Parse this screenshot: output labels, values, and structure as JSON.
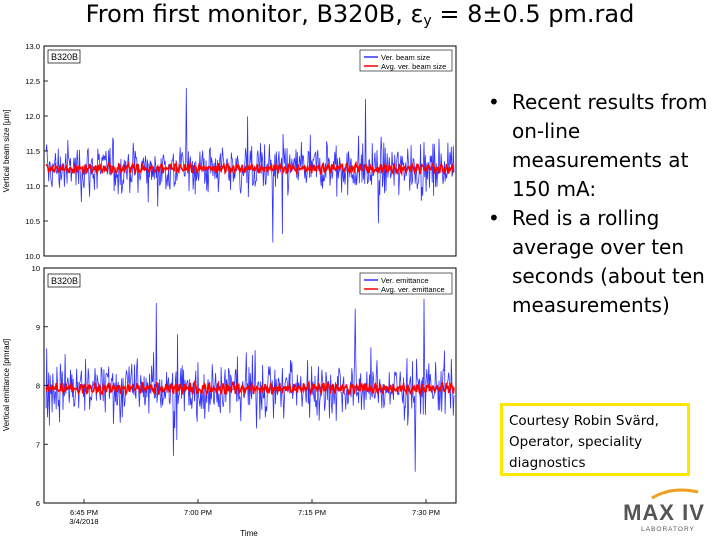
{
  "slide": {
    "title_prefix": "From first monitor, B320B, ε",
    "title_sub": "y",
    "title_suffix": " = 8±0.5 pm.rad",
    "bullets": [
      "Recent results from on-line measurements at 150 mA:",
      "Red is a rolling average over ten seconds (about ten measurements)"
    ],
    "courtesy": "Courtesy Robin Svärd, Operator, speciality diagnostics",
    "logo_text": "MAX IV",
    "logo_sub": "LABORATORY"
  },
  "colors": {
    "raw": "#3333ff",
    "avg": "#ff0000",
    "accent": "#ffe600"
  },
  "chart_data": [
    {
      "type": "line",
      "panel_label": "B320B",
      "ylabel": "Vertical beam size [µm]",
      "xlabel": "",
      "ylim": [
        10.0,
        13.0
      ],
      "yticks": [
        "10.0",
        "10.5",
        "11.0",
        "11.5",
        "12.0",
        "12.5",
        "13.0"
      ],
      "series": [
        {
          "name": "Ver. beam size",
          "mean": 11.25,
          "spread": 0.4,
          "color": "#3333ff"
        },
        {
          "name": "Avg. ver. beam size",
          "mean": 11.25,
          "spread": 0.06,
          "color": "#ff0000"
        }
      ]
    },
    {
      "type": "line",
      "panel_label": "B320B",
      "ylabel": "Vertical emittance [pmrad]",
      "xlabel": "Time",
      "ylim": [
        6,
        10
      ],
      "yticks": [
        "6",
        "7",
        "8",
        "9",
        "10"
      ],
      "xticks": [
        {
          "line1": "6:45 PM",
          "line2": "3/4/2018"
        },
        {
          "line1": "7:00 PM",
          "line2": ""
        },
        {
          "line1": "7:15 PM",
          "line2": ""
        },
        {
          "line1": "7:30 PM",
          "line2": ""
        }
      ],
      "series": [
        {
          "name": "Ver. emittance",
          "mean": 7.95,
          "spread": 0.55,
          "color": "#3333ff"
        },
        {
          "name": "Avg. ver. emittance",
          "mean": 7.95,
          "spread": 0.08,
          "color": "#ff0000"
        }
      ]
    }
  ]
}
